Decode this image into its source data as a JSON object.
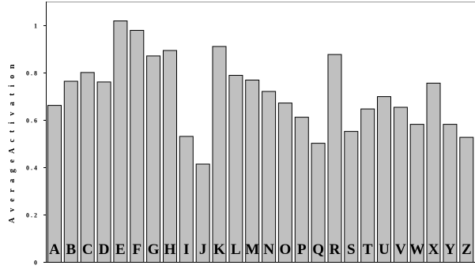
{
  "chart_data": {
    "type": "bar",
    "title": "",
    "xlabel": "",
    "ylabel": "A v e r a g e A c t i v a t i o n",
    "categories": [
      "A",
      "B",
      "C",
      "D",
      "E",
      "F",
      "G",
      "H",
      "I",
      "J",
      "K",
      "L",
      "M",
      "N",
      "O",
      "P",
      "Q",
      "R",
      "S",
      "T",
      "U",
      "V",
      "W",
      "X",
      "Y",
      "Z"
    ],
    "values": [
      0.663,
      0.765,
      0.802,
      0.762,
      1.02,
      0.98,
      0.872,
      0.895,
      0.532,
      0.415,
      0.912,
      0.79,
      0.77,
      0.722,
      0.673,
      0.613,
      0.503,
      0.878,
      0.553,
      0.648,
      0.7,
      0.655,
      0.583,
      0.757,
      0.583,
      0.528
    ],
    "ylim": [
      0,
      1.1
    ],
    "yticks": [
      0,
      0.2,
      0.4,
      0.6,
      0.8,
      1
    ],
    "ytick_labels": [
      "0",
      "0 . 2",
      "0 . 4",
      "0 . 6",
      "0 . 8",
      "1"
    ],
    "bar_color": "#c0c0c0",
    "grid": false,
    "legend": "none"
  }
}
